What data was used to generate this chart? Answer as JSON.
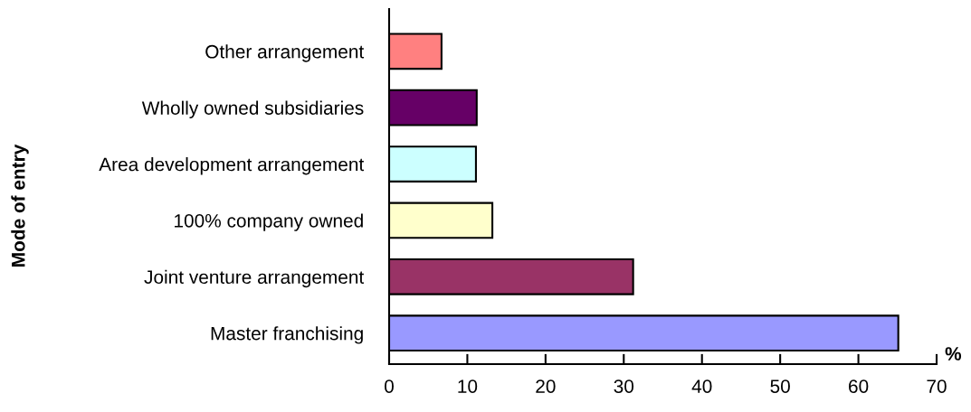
{
  "chart_data": {
    "type": "bar",
    "orientation": "horizontal",
    "xlabel": "%",
    "ylabel": "Mode of entry",
    "categories": [
      "Other arrangement",
      "Wholly owned subsidiaries",
      "Area development arrangement",
      "100% company owned",
      "Joint venture arrangement",
      "Master franchising"
    ],
    "values": [
      6.7,
      11.2,
      11.1,
      13.2,
      31.2,
      65.1
    ],
    "colors": [
      "#ff8080",
      "#660066",
      "#ccffff",
      "#ffffcc",
      "#993366",
      "#9999ff"
    ],
    "xlim": [
      0,
      70
    ],
    "xticks": [
      0,
      10,
      20,
      30,
      40,
      50,
      60,
      70
    ],
    "grid": false,
    "legend": false
  }
}
